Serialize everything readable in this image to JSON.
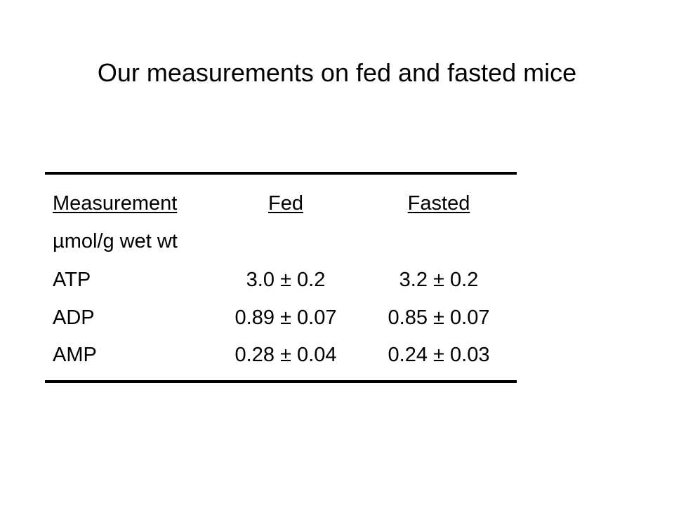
{
  "title": "Our measurements on fed and fasted mice",
  "table": {
    "header": [
      "Measurement",
      "Fed",
      "Fasted"
    ],
    "units": "µmol/g wet wt",
    "rows": [
      [
        "ATP",
        "3.0 ± 0.2",
        "3.2 ± 0.2"
      ],
      [
        "ADP",
        "0.89 ± 0.07",
        "0.85 ± 0.07"
      ],
      [
        "AMP",
        "0.28 ± 0.04",
        "0.24 ± 0.03"
      ]
    ]
  }
}
